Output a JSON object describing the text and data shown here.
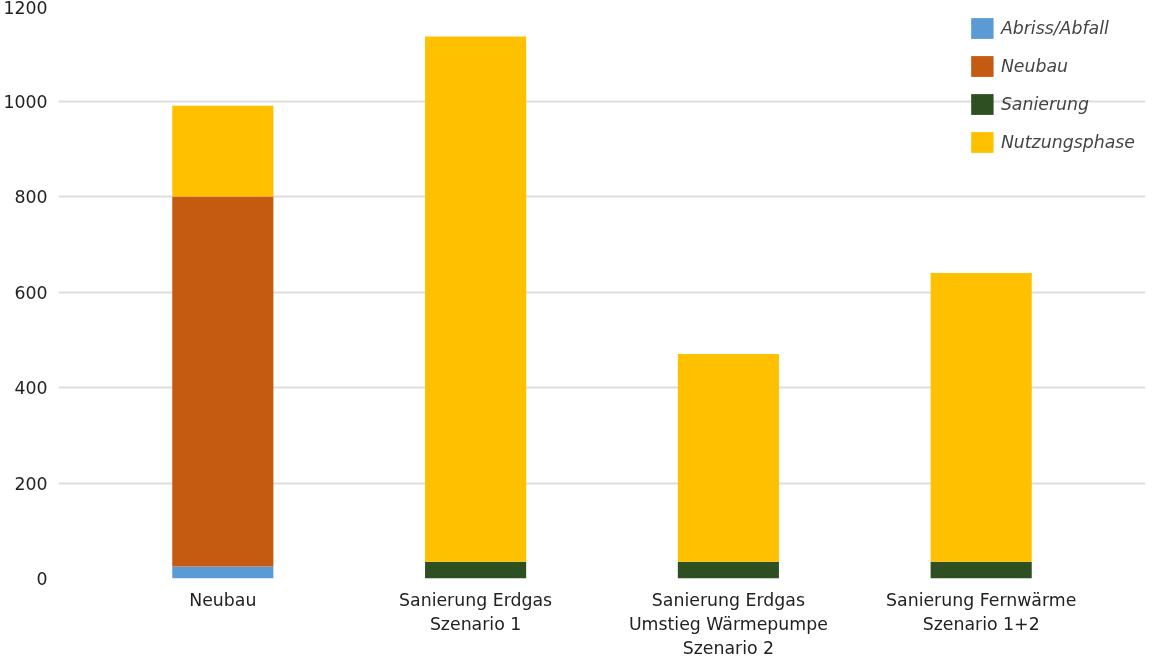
{
  "chart_data": {
    "type": "bar",
    "stacked": true,
    "categories": [
      "Neubau",
      "Sanierung Erdgas\nSzenario 1",
      "Sanierung Erdgas\nUmstieg Wärmepumpe\nSzenario 2",
      "Sanierung Fernwärme\nSzenario 1+2"
    ],
    "series": [
      {
        "name": "Abriss/Abfall",
        "color": "#5b9bd5",
        "values": [
          25,
          0,
          0,
          0
        ]
      },
      {
        "name": "Neubau",
        "color": "#c55a11",
        "values": [
          775,
          0,
          0,
          0
        ]
      },
      {
        "name": "Sanierung",
        "color": "#2e4f22",
        "values": [
          0,
          35,
          35,
          35
        ]
      },
      {
        "name": "Nutzungsphase",
        "color": "#ffc000",
        "values": [
          190,
          1100,
          435,
          605
        ]
      }
    ],
    "ylim": [
      0,
      1200
    ],
    "yticks": [
      0,
      200,
      400,
      600,
      800,
      1000,
      1200
    ],
    "grid": "y",
    "legend": "top right"
  }
}
